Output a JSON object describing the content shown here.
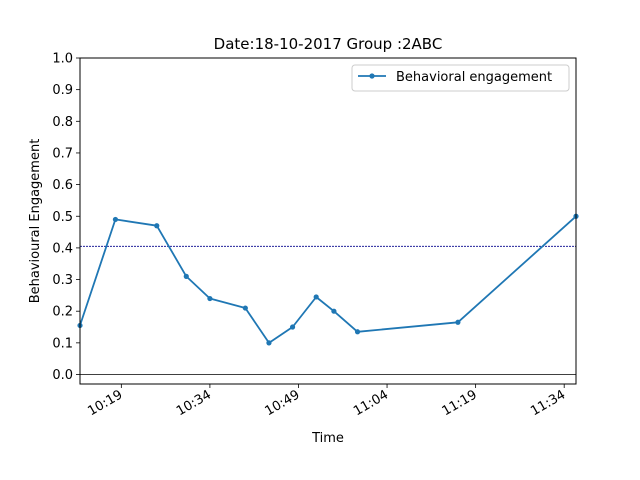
{
  "chart_data": {
    "type": "line",
    "title": "Date:18-10-2017 Group :2ABC",
    "xlabel": "Time",
    "ylabel": "Behavioural Engagement",
    "ylim": [
      -0.03,
      1.0
    ],
    "xlim": [
      "10:12",
      "11:36"
    ],
    "x_ticks": [
      "10:19",
      "10:34",
      "10:49",
      "11:04",
      "11:19",
      "11:34"
    ],
    "y_ticks": [
      "0.0",
      "0.1",
      "0.2",
      "0.3",
      "0.4",
      "0.5",
      "0.6",
      "0.7",
      "0.8",
      "0.9",
      "1.0"
    ],
    "grid": false,
    "legend_position": "top-right",
    "horizontal_reference_line": 0.405,
    "series": [
      {
        "name": "Behavioral engagement",
        "color": "#1f77b4",
        "x": [
          "10:12",
          "10:18",
          "10:25",
          "10:30",
          "10:34",
          "10:40",
          "10:44",
          "10:48",
          "10:52",
          "10:55",
          "10:59",
          "11:16",
          "11:36"
        ],
        "y": [
          0.155,
          0.49,
          0.47,
          0.31,
          0.24,
          0.21,
          0.1,
          0.15,
          0.245,
          0.2,
          0.135,
          0.165,
          0.5
        ]
      }
    ],
    "reference_line_color": "#00008b",
    "zero_line_color": "#000000"
  }
}
